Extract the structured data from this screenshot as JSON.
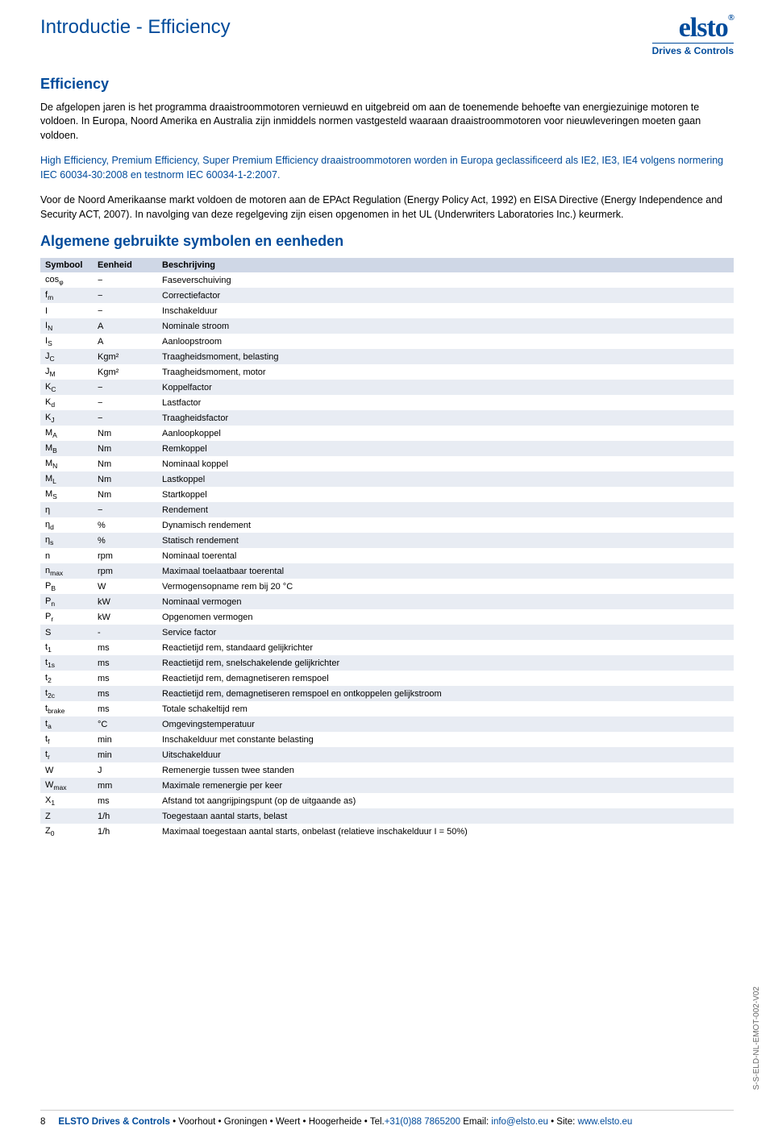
{
  "header": {
    "title": "Introductie - Efficiency",
    "logo_main": "elsto",
    "logo_reg": "®",
    "logo_sub": "Drives & Controls"
  },
  "section1_title": "Efficiency",
  "para1": "De afgelopen jaren is het programma draaistroommotoren vernieuwd en uitgebreid om aan de toenemende behoefte van energiezuinige motoren te voldoen. In Europa, Noord Amerika en Australia zijn inmiddels normen vastgesteld waaraan draaistroommotoren voor nieuwleveringen moeten gaan voldoen.",
  "para2": "High Efficiency, Premium Efficiency, Super Premium Efficiency draaistroommotoren worden in Europa geclassificeerd als IE2, IE3, IE4 volgens normering IEC 60034-30:2008 en testnorm IEC 60034-1-2:2007.",
  "para3": "Voor de Noord Amerikaanse markt voldoen de motoren aan de EPAct Regulation (Energy Policy Act, 1992) en EISA Directive (Energy Independence and Security ACT, 2007). In navolging van deze regelgeving zijn eisen opgenomen in het UL (Underwriters Laboratories Inc.) keurmerk.",
  "section2_title": "Algemene gebruikte symbolen en eenheden",
  "table": {
    "header": {
      "c1": "Symbool",
      "c2": "Eenheid",
      "c3": "Beschrijving"
    },
    "rows": [
      {
        "sym": "cos",
        "sub": "φ",
        "unit": "−",
        "desc": "Faseverschuiving"
      },
      {
        "sym": "f",
        "sub": "m",
        "unit": "−",
        "desc": "Correctiefactor"
      },
      {
        "sym": "I",
        "sub": "",
        "unit": "−",
        "desc": "Inschakelduur"
      },
      {
        "sym": "I",
        "sub": "N",
        "unit": "A",
        "desc": "Nominale stroom"
      },
      {
        "sym": "I",
        "sub": "S",
        "unit": "A",
        "desc": "Aanloopstroom"
      },
      {
        "sym": "J",
        "sub": "C",
        "unit": "Kgm²",
        "desc": "Traagheidsmoment, belasting"
      },
      {
        "sym": "J",
        "sub": "M",
        "unit": "Kgm²",
        "desc": "Traagheidsmoment, motor"
      },
      {
        "sym": "K",
        "sub": "C",
        "unit": "−",
        "desc": "Koppelfactor"
      },
      {
        "sym": "K",
        "sub": "d",
        "unit": "−",
        "desc": "Lastfactor"
      },
      {
        "sym": "K",
        "sub": "J",
        "unit": "−",
        "desc": "Traagheidsfactor"
      },
      {
        "sym": "M",
        "sub": "A",
        "unit": "Nm",
        "desc": "Aanloopkoppel"
      },
      {
        "sym": "M",
        "sub": "B",
        "unit": "Nm",
        "desc": "Remkoppel"
      },
      {
        "sym": "M",
        "sub": "N",
        "unit": "Nm",
        "desc": "Nominaal koppel"
      },
      {
        "sym": "M",
        "sub": "L",
        "unit": "Nm",
        "desc": "Lastkoppel"
      },
      {
        "sym": "M",
        "sub": "S",
        "unit": "Nm",
        "desc": "Startkoppel"
      },
      {
        "sym": "η",
        "sub": "",
        "unit": "−",
        "desc": "Rendement"
      },
      {
        "sym": "η",
        "sub": "d",
        "unit": "%",
        "desc": "Dynamisch rendement"
      },
      {
        "sym": "η",
        "sub": "s",
        "unit": "%",
        "desc": "Statisch rendement"
      },
      {
        "sym": "n",
        "sub": "",
        "unit": "rpm",
        "desc": "Nominaal toerental"
      },
      {
        "sym": "n",
        "sub": "max",
        "unit": "rpm",
        "desc": "Maximaal toelaatbaar toerental"
      },
      {
        "sym": "P",
        "sub": "B",
        "unit": "W",
        "desc": "Vermogensopname rem bij 20 °C"
      },
      {
        "sym": "P",
        "sub": "n",
        "unit": "kW",
        "desc": "Nominaal vermogen"
      },
      {
        "sym": "P",
        "sub": "r",
        "unit": "kW",
        "desc": "Opgenomen vermogen"
      },
      {
        "sym": "S",
        "sub": "",
        "unit": "-",
        "desc": "Service factor"
      },
      {
        "sym": "t",
        "sub": "1",
        "unit": "ms",
        "desc": "Reactietijd rem, standaard gelijkrichter"
      },
      {
        "sym": "t",
        "sub": "1s",
        "unit": "ms",
        "desc": "Reactietijd rem, snelschakelende gelijkrichter"
      },
      {
        "sym": "t",
        "sub": "2",
        "unit": "ms",
        "desc": "Reactietijd rem, demagnetiseren remspoel"
      },
      {
        "sym": "t",
        "sub": "2c",
        "unit": "ms",
        "desc": "Reactietijd rem, demagnetiseren remspoel en ontkoppelen gelijkstroom"
      },
      {
        "sym": "t",
        "sub": "brake",
        "unit": "ms",
        "desc": "Totale schakeltijd rem"
      },
      {
        "sym": "t",
        "sub": "a",
        "unit": "°C",
        "desc": "Omgevingstemperatuur"
      },
      {
        "sym": "t",
        "sub": "f",
        "unit": "min",
        "desc": "Inschakelduur met constante belasting"
      },
      {
        "sym": "t",
        "sub": "r",
        "unit": "min",
        "desc": "Uitschakelduur"
      },
      {
        "sym": "W",
        "sub": "",
        "unit": "J",
        "desc": "Remenergie tussen twee standen"
      },
      {
        "sym": "W",
        "sub": "max",
        "unit": "mm",
        "desc": "Maximale remenergie per keer"
      },
      {
        "sym": "X",
        "sub": "1",
        "unit": "ms",
        "desc": "Afstand tot aangrijpingspunt (op de uitgaande as)"
      },
      {
        "sym": "Z",
        "sub": "",
        "unit": "1/h",
        "desc": "Toegestaan aantal starts, belast"
      },
      {
        "sym": "Z",
        "sub": "0",
        "unit": "1/h",
        "desc": "Maximaal toegestaan aantal starts, onbelast (relatieve inschakelduur I = 50%)"
      }
    ]
  },
  "side_code": "S-S-ELD-NL-EMOT-002-V02",
  "footer": {
    "page_number": "8",
    "company": "ELSTO Drives & Controls",
    "locations": "• Voorhout • Groningen • Weert • Hoogerheide • Tel.",
    "tel": "+31(0)88 7865200",
    "email_label": " Email: ",
    "email": "info@elsto.eu",
    "site_label": " • Site: ",
    "site": "www.elsto.eu"
  }
}
